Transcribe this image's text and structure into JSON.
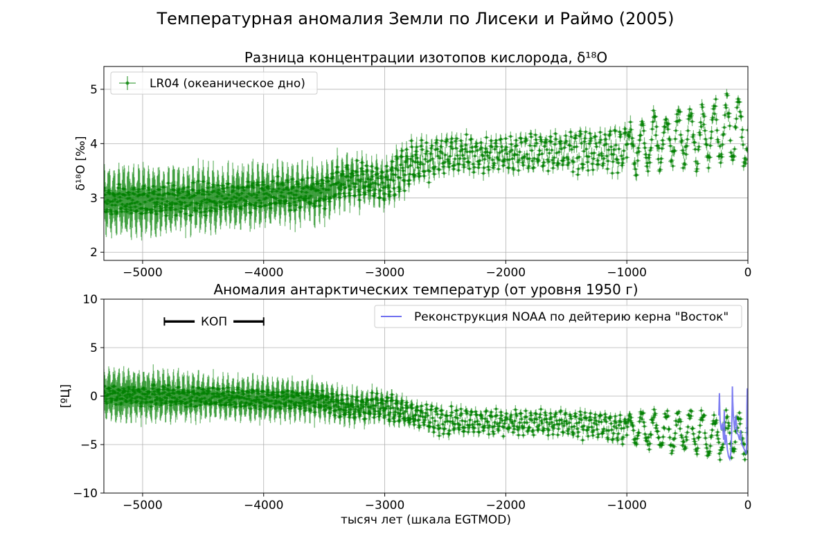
{
  "figure": {
    "suptitle": "Температурная аномалия Земли по Лисеки и Раймо (2005)"
  },
  "chart_data": [
    {
      "type": "scatter",
      "title": "Разница концентрации изотопов кислорода, δ¹⁸O",
      "xlabel": "",
      "ylabel": "δ¹⁸O [‰]",
      "xlim": [
        -5320,
        0
      ],
      "ylim": [
        1.85,
        5.42
      ],
      "xticks": [
        -5000,
        -4000,
        -3000,
        -2000,
        -1000,
        0
      ],
      "xtick_labels": [
        "−5000",
        "−4000",
        "−3000",
        "−2000",
        "−1000",
        "0"
      ],
      "yticks": [
        2,
        3,
        4,
        5
      ],
      "ytick_labels": [
        "2",
        "3",
        "4",
        "5"
      ],
      "grid": true,
      "legend_position": "top-left",
      "series": [
        {
          "name": "LR04 (океаническое дно)",
          "color": "#008000",
          "style": "points with error bars",
          "envelope": {
            "x": [
              -5320,
              -5000,
              -4500,
              -4000,
              -3500,
              -3300,
              -3000,
              -2800,
              -2500,
              -2000,
              -1500,
              -1000,
              -700,
              -500,
              -300,
              -100,
              0
            ],
            "center": [
              2.95,
              2.95,
              2.98,
              3.05,
              3.1,
              3.35,
              3.25,
              3.6,
              3.8,
              3.8,
              3.85,
              3.9,
              4.1,
              4.1,
              4.2,
              4.3,
              4.2
            ],
            "amplitude": [
              0.25,
              0.28,
              0.28,
              0.28,
              0.3,
              0.3,
              0.35,
              0.4,
              0.35,
              0.3,
              0.35,
              0.45,
              0.6,
              0.6,
              0.6,
              0.65,
              0.75
            ],
            "error": [
              0.4,
              0.4,
              0.35,
              0.35,
              0.3,
              0.25,
              0.2,
              0.15,
              0.12,
              0.1,
              0.1,
              0.1,
              0.08,
              0.08,
              0.08,
              0.07,
              0.07
            ]
          }
        }
      ]
    },
    {
      "type": "scatter",
      "title": "Аномалия антарктических температур (от уровня 1950 г)",
      "xlabel": "тысяч лет (шкала EGTMOD)",
      "ylabel": "[ºЦ]",
      "xlim": [
        -5320,
        0
      ],
      "ylim": [
        -10,
        10
      ],
      "xticks": [
        -5000,
        -4000,
        -3000,
        -2000,
        -1000,
        0
      ],
      "xtick_labels": [
        "−5000",
        "−4000",
        "−3000",
        "−2000",
        "−1000",
        "0"
      ],
      "yticks": [
        -10,
        -5,
        0,
        5,
        10
      ],
      "ytick_labels": [
        "−10",
        "−5",
        "0",
        "5",
        "10"
      ],
      "grid": true,
      "legend_position": "top-right",
      "annotation": {
        "label": "КОП",
        "x_start": -4820,
        "x_end": -4000,
        "y": 7.7
      },
      "series": [
        {
          "name": "",
          "color": "#008000",
          "style": "points with error bars",
          "envelope": {
            "x": [
              -5320,
              -5000,
              -4500,
              -4000,
              -3500,
              -3300,
              -3000,
              -2800,
              -2500,
              -2000,
              -1500,
              -1000,
              -700,
              -500,
              -300,
              -100,
              0
            ],
            "center": [
              0.1,
              0.1,
              -0.1,
              -0.3,
              -0.5,
              -1.2,
              -1.0,
              -1.9,
              -2.6,
              -2.7,
              -2.8,
              -3.2,
              -3.7,
              -3.5,
              -4.0,
              -4.2,
              -3.5
            ],
            "amplitude": [
              0.9,
              1.0,
              1.0,
              1.0,
              1.1,
              1.2,
              1.3,
              1.5,
              1.4,
              1.2,
              1.3,
              1.7,
              2.3,
              2.3,
              2.4,
              2.5,
              2.9
            ],
            "error": [
              1.8,
              1.8,
              1.5,
              1.4,
              1.2,
              1.0,
              0.8,
              0.6,
              0.5,
              0.4,
              0.4,
              0.4,
              0.3,
              0.3,
              0.3,
              0.3,
              0.3
            ]
          }
        },
        {
          "name": "Реконструкция NOAA по дейтерию керна \"Восток\"",
          "color": "#7070f0",
          "style": "line",
          "x": [
            -240,
            -235,
            -230,
            -220,
            -210,
            -200,
            -195,
            -190,
            -180,
            -170,
            -160,
            -150,
            -140,
            -135,
            -130,
            -128,
            -125,
            -120,
            -110,
            -100,
            -90,
            -80,
            -70,
            -60,
            -50,
            -40,
            -30,
            -20,
            -15,
            -10,
            -8,
            -5,
            0
          ],
          "y": [
            -2.0,
            0.3,
            -2.5,
            -3.5,
            -2.8,
            -4.5,
            -1.5,
            -5.0,
            -4.0,
            -5.5,
            -6.2,
            -6.5,
            -5.8,
            -4.0,
            -1.0,
            1.0,
            -0.5,
            -2.0,
            -3.5,
            -2.0,
            -3.8,
            -4.0,
            -4.5,
            -3.5,
            -5.0,
            -5.2,
            -5.5,
            -5.8,
            -6.0,
            -5.0,
            -1.0,
            0.8,
            -0.5
          ]
        }
      ]
    }
  ]
}
